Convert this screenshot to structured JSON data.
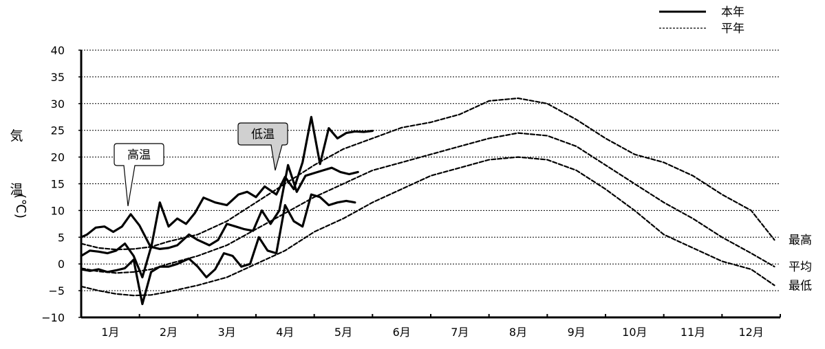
{
  "chart_data": {
    "type": "line",
    "ylabel": [
      "気",
      "温",
      "(℃)"
    ],
    "ylim": [
      -10,
      40
    ],
    "yticks": [
      40,
      35,
      30,
      25,
      20,
      15,
      10,
      5,
      0,
      -5,
      -10
    ],
    "categories": [
      "1月",
      "2月",
      "3月",
      "4月",
      "5月",
      "6月",
      "7月",
      "8月",
      "9月",
      "10月",
      "11月",
      "12月"
    ],
    "grid": true,
    "legend": {
      "position": "top-right",
      "entries": [
        {
          "name": "本年",
          "style": "solid"
        },
        {
          "name": "平年",
          "style": "dashed"
        }
      ]
    },
    "annotations": [
      {
        "text": "高温",
        "style": "white-callout"
      },
      {
        "text": "低温",
        "style": "gray-callout"
      }
    ],
    "series": [
      {
        "name": "最高",
        "group": "平年",
        "style": "dashed",
        "x": [
          0.0,
          0.3,
          0.6,
          0.9,
          1.2,
          1.5,
          2.0,
          2.5,
          3.0,
          3.5,
          4.0,
          4.5,
          5.0,
          5.5,
          6.0,
          6.5,
          7.0,
          7.5,
          8.0,
          8.5,
          9.0,
          9.5,
          10.0,
          10.5,
          11.0,
          11.5,
          11.9
        ],
        "values": [
          3.8,
          3.0,
          2.7,
          2.8,
          3.2,
          4.2,
          5.5,
          8.0,
          11.5,
          15.0,
          18.5,
          21.5,
          23.5,
          25.5,
          26.5,
          28.0,
          30.5,
          31.0,
          30.0,
          27.0,
          23.5,
          20.5,
          19.0,
          16.5,
          13.0,
          10.0,
          4.5
        ]
      },
      {
        "name": "平均",
        "group": "平年",
        "style": "dashed",
        "x": [
          0.0,
          0.3,
          0.6,
          0.9,
          1.2,
          1.5,
          2.0,
          2.5,
          3.0,
          3.5,
          4.0,
          4.5,
          5.0,
          5.5,
          6.0,
          6.5,
          7.0,
          7.5,
          8.0,
          8.5,
          9.0,
          9.5,
          10.0,
          10.5,
          11.0,
          11.5,
          11.9
        ],
        "values": [
          -0.8,
          -1.4,
          -1.7,
          -1.5,
          -1.0,
          0.0,
          1.5,
          3.5,
          6.5,
          9.5,
          12.5,
          15.0,
          17.5,
          19.0,
          20.5,
          22.0,
          23.5,
          24.5,
          24.0,
          22.0,
          18.5,
          15.0,
          11.5,
          8.5,
          5.0,
          2.0,
          -0.5
        ]
      },
      {
        "name": "最低",
        "group": "平年",
        "style": "dashed",
        "x": [
          0.0,
          0.3,
          0.6,
          0.9,
          1.2,
          1.5,
          2.0,
          2.5,
          3.0,
          3.5,
          4.0,
          4.5,
          5.0,
          5.5,
          6.0,
          6.5,
          7.0,
          7.5,
          8.0,
          8.5,
          9.0,
          9.5,
          10.0,
          10.5,
          11.0,
          11.5,
          11.9
        ],
        "values": [
          -4.2,
          -5.0,
          -5.6,
          -5.9,
          -5.8,
          -5.2,
          -4.0,
          -2.5,
          0.0,
          2.5,
          6.0,
          8.5,
          11.5,
          14.0,
          16.5,
          18.0,
          19.5,
          20.0,
          19.5,
          17.5,
          14.0,
          10.0,
          5.5,
          3.0,
          0.5,
          -1.0,
          -4.0
        ]
      },
      {
        "name": "最高",
        "group": "本年",
        "style": "solid",
        "x": [
          0.0,
          0.1,
          0.25,
          0.4,
          0.55,
          0.7,
          0.85,
          1.0,
          1.2,
          1.35,
          1.5,
          1.65,
          1.8,
          1.95,
          2.1,
          2.3,
          2.5,
          2.7,
          2.85,
          3.0,
          3.15,
          3.35,
          3.5,
          3.65,
          3.8,
          3.95,
          4.1,
          4.25,
          4.4,
          4.55,
          4.7,
          4.85,
          5.0
        ],
        "values": [
          5.0,
          5.5,
          6.8,
          7.0,
          6.0,
          7.0,
          9.3,
          7.2,
          3.0,
          11.5,
          7.0,
          8.5,
          7.5,
          9.5,
          12.4,
          11.5,
          11.0,
          13.0,
          13.5,
          12.5,
          14.5,
          13.0,
          16.3,
          14.0,
          19.0,
          27.5,
          18.7,
          25.4,
          23.5,
          24.5,
          24.8,
          24.7,
          24.9
        ]
      },
      {
        "name": "平均",
        "group": "本年",
        "style": "solid",
        "x": [
          0.0,
          0.15,
          0.3,
          0.45,
          0.6,
          0.75,
          0.9,
          1.05,
          1.2,
          1.35,
          1.5,
          1.65,
          1.85,
          2.0,
          2.2,
          2.35,
          2.5,
          2.65,
          2.8,
          2.95,
          3.1,
          3.25,
          3.4,
          3.55,
          3.7,
          3.85,
          4.0,
          4.15,
          4.3,
          4.45,
          4.6,
          4.75
        ],
        "values": [
          1.5,
          2.5,
          2.3,
          2.0,
          2.5,
          3.8,
          1.5,
          -2.5,
          3.2,
          2.8,
          3.0,
          3.5,
          5.5,
          4.5,
          3.5,
          4.5,
          7.5,
          7.0,
          6.5,
          6.2,
          10.0,
          7.5,
          10.0,
          18.5,
          13.5,
          16.5,
          17.0,
          17.5,
          18.0,
          17.2,
          16.8,
          17.2
        ]
      },
      {
        "name": "最低",
        "group": "本年",
        "style": "solid",
        "x": [
          0.0,
          0.15,
          0.3,
          0.45,
          0.6,
          0.75,
          0.9,
          1.05,
          1.2,
          1.35,
          1.5,
          1.65,
          1.85,
          2.0,
          2.15,
          2.3,
          2.45,
          2.6,
          2.75,
          2.9,
          3.05,
          3.2,
          3.35,
          3.5,
          3.65,
          3.8,
          3.95,
          4.1,
          4.25,
          4.4,
          4.55,
          4.7
        ],
        "values": [
          -1.0,
          -1.3,
          -1.0,
          -1.5,
          -1.2,
          -0.8,
          0.8,
          -7.5,
          -1.5,
          -0.5,
          -0.5,
          0.0,
          1.0,
          -0.5,
          -2.5,
          -1.0,
          2.0,
          1.5,
          -0.5,
          0.0,
          5.0,
          2.5,
          2.0,
          11.0,
          8.0,
          7.0,
          13.0,
          12.5,
          11.0,
          11.5,
          11.8,
          11.5
        ]
      }
    ]
  }
}
